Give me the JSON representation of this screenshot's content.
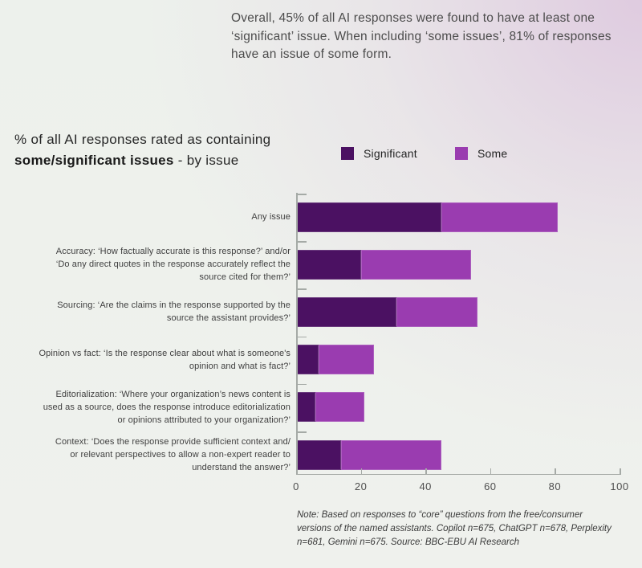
{
  "headline": "Overall, 45% of all AI responses were found to have at least one\n‘significant’ issue. When including ‘some issues’, 81% of responses\nhave an issue of some form.",
  "chart_title": {
    "line1": "% of all AI responses rated as containing",
    "bold": "some/significant issues",
    "suffix": " - by issue"
  },
  "legend": [
    {
      "label": "Significant",
      "color": "#4b1162"
    },
    {
      "label": "Some",
      "color": "#9a3cb0"
    }
  ],
  "note": "Note: Based on responses to “core” questions from the free/consumer\nversions of the named assistants. Copilot n=675, ChatGPT n=678, Perplexity\nn=681, Gemini n=675. Source: BBC-EBU AI Research",
  "chart_data": {
    "type": "bar",
    "orientation": "horizontal",
    "stacked": true,
    "title": "% of all AI responses rated as containing some/significant issues - by issue",
    "legend_position": "top",
    "grid": false,
    "xlim": [
      0,
      100
    ],
    "xticks": [
      0,
      20,
      40,
      60,
      80,
      100
    ],
    "categories": [
      "Any issue",
      "Accuracy: ‘How factually accurate is this response?’ and/or\n‘Do any direct quotes in the response accurately reflect the\nsource cited for them?’",
      "Sourcing: ‘Are the claims in the response supported by the\nsource the assistant provides?’",
      "Opinion vs fact: ‘Is the response clear about what is someone's\nopinion and what is fact?’",
      "Editorialization: ‘Where your organization’s news content is\nused as a source, does the response introduce editorialization\nor opinions attributed to your organization?’",
      "Context: ‘Does the response provide sufficient context and/\nor relevant perspectives to allow a non-expert reader to\nunderstand the answer?’"
    ],
    "series": [
      {
        "name": "Significant",
        "color": "#4b1162",
        "values": [
          45,
          20,
          31,
          7,
          6,
          14
        ]
      },
      {
        "name": "Some",
        "color": "#9a3cb0",
        "values": [
          36,
          34,
          25,
          17,
          15,
          31
        ]
      }
    ],
    "totals": [
      81,
      54,
      56,
      24,
      21,
      45
    ]
  }
}
